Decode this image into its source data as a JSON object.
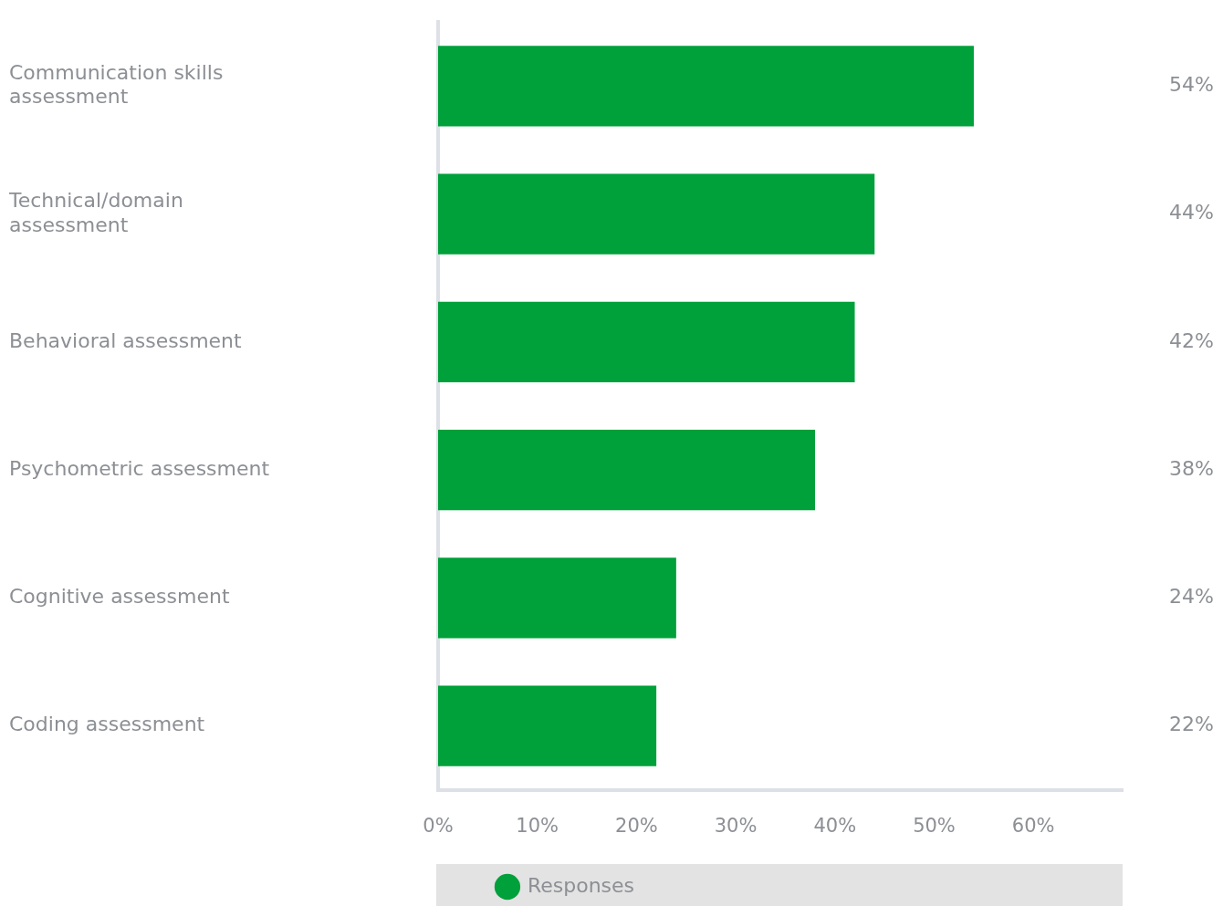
{
  "chart_data": {
    "type": "bar",
    "orientation": "horizontal",
    "categories": [
      "Communication skills assessment",
      "Technical/domain assessment",
      "Behavioral assessment",
      "Psychometric assessment",
      "Cognitive assessment",
      "Coding assessment"
    ],
    "series": [
      {
        "name": "Responses",
        "color": "#00a03a",
        "values": [
          54,
          44,
          42,
          38,
          24,
          22
        ]
      }
    ],
    "value_labels": [
      "54%",
      "44%",
      "42%",
      "38%",
      "24%",
      "22%"
    ],
    "xlim": [
      0,
      69
    ],
    "xticks": [
      {
        "value": 0,
        "label": "0%"
      },
      {
        "value": 10,
        "label": "10%"
      },
      {
        "value": 20,
        "label": "20%"
      },
      {
        "value": 30,
        "label": "30%"
      },
      {
        "value": 40,
        "label": "40%"
      },
      {
        "value": 50,
        "label": "50%"
      },
      {
        "value": 60,
        "label": "60%"
      }
    ],
    "grid": false,
    "legend": "bottom"
  }
}
